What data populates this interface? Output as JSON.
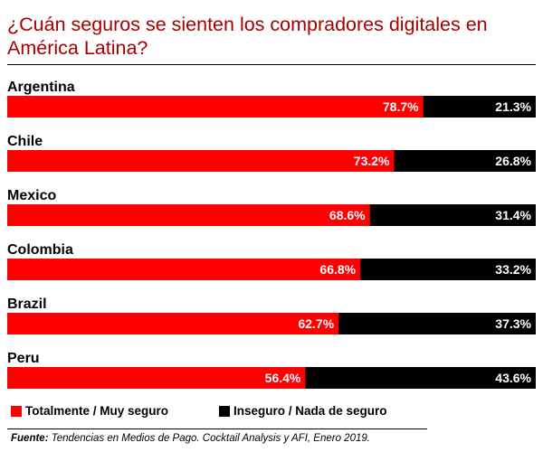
{
  "colors": {
    "title": "#a50000",
    "secure": "#ff0000",
    "insecure": "#000000"
  },
  "chart_data": {
    "type": "bar",
    "orientation": "horizontal",
    "stacked": true,
    "percent_stacked": true,
    "title": "¿Cuán seguros se sienten los compradores digitales en América Latina?",
    "categories": [
      "Argentina",
      "Chile",
      "Mexico",
      "Colombia",
      "Brazil",
      "Peru"
    ],
    "series": [
      {
        "name": "Totalmente / Muy seguro",
        "color": "#ff0000",
        "values": [
          78.7,
          73.2,
          68.6,
          66.8,
          62.7,
          56.4
        ]
      },
      {
        "name": "Inseguro / Nada de seguro",
        "color": "#000000",
        "values": [
          21.3,
          26.8,
          31.4,
          33.2,
          37.3,
          43.6
        ]
      }
    ],
    "value_suffix": "%",
    "xlim": [
      0,
      100
    ],
    "grid": false,
    "legend_position": "bottom"
  },
  "source": {
    "label": "Fuente:",
    "text": " Tendencias en Medios de Pago. Cocktail Analysis y AFI, Enero 2019."
  }
}
